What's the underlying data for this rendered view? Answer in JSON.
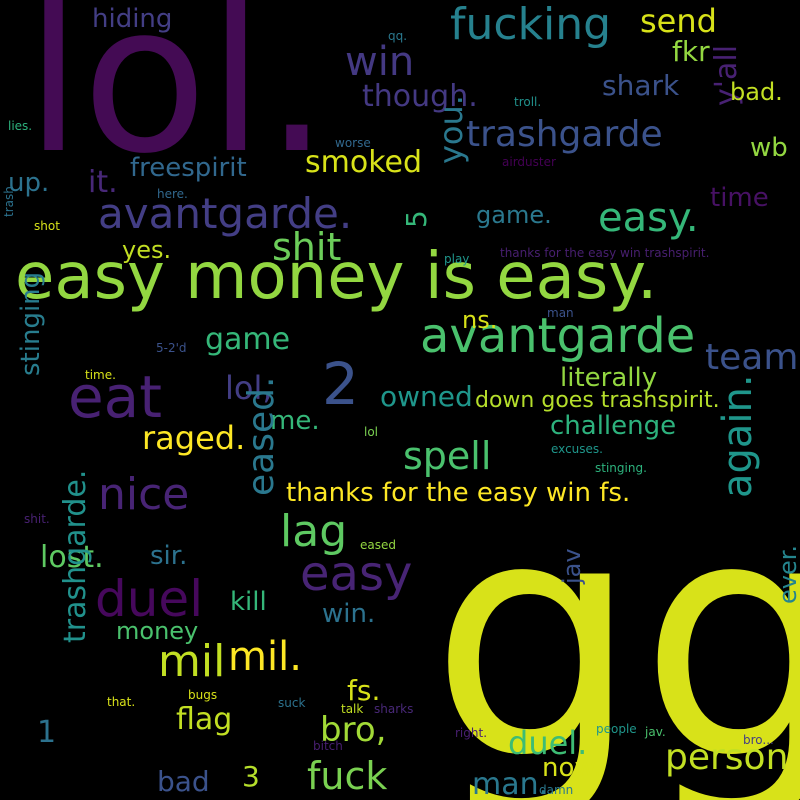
{
  "background_color": "#000000",
  "words": [
    {
      "id": "lol-big",
      "text": "lol.",
      "color": "#440b54"
    },
    {
      "id": "gg",
      "text": "gg",
      "color": "#d8e219"
    },
    {
      "id": "easy-money",
      "text": "easy money is easy.",
      "color": "#93d741"
    },
    {
      "id": "fucking",
      "text": "fucking",
      "color": "#26818e"
    },
    {
      "id": "send",
      "text": "send",
      "color": "#d8e219"
    },
    {
      "id": "hiding",
      "text": "hiding",
      "color": "#433e85"
    },
    {
      "id": "win",
      "text": "win",
      "color": "#443983"
    },
    {
      "id": "fkr",
      "text": "fkr",
      "color": "#93d741"
    },
    {
      "id": "shark",
      "text": "shark",
      "color": "#3b528b"
    },
    {
      "id": "though",
      "text": "though.",
      "color": "#443983"
    },
    {
      "id": "yall",
      "text": "y'all",
      "color": "#482173"
    },
    {
      "id": "bad-dot",
      "text": "bad.",
      "color": "#c2df23"
    },
    {
      "id": "trashgarde",
      "text": "trashgarde",
      "color": "#3b528b"
    },
    {
      "id": "wb",
      "text": "wb",
      "color": "#93d741"
    },
    {
      "id": "freespirit",
      "text": "freespirit",
      "color": "#31688e"
    },
    {
      "id": "smoked",
      "text": "smoked",
      "color": "#d8e219"
    },
    {
      "id": "you",
      "text": "you.",
      "color": "#2a788e"
    },
    {
      "id": "time-right",
      "text": "time",
      "color": "#471164"
    },
    {
      "id": "up",
      "text": "up.",
      "color": "#2c728e"
    },
    {
      "id": "it",
      "text": "it.",
      "color": "#482878"
    },
    {
      "id": "avantgarde-dot",
      "text": "avantgarde.",
      "color": "#433e85"
    },
    {
      "id": "five",
      "text": "5",
      "color": "#35b779"
    },
    {
      "id": "game-dot",
      "text": "game.",
      "color": "#2a788e"
    },
    {
      "id": "easy-dot",
      "text": "easy.",
      "color": "#35b779"
    },
    {
      "id": "shit",
      "text": "shit",
      "color": "#6ccd5a"
    },
    {
      "id": "yes",
      "text": "yes.",
      "color": "#c2df23"
    },
    {
      "id": "avantgarde",
      "text": "avantgarde",
      "color": "#4ac16d"
    },
    {
      "id": "ns",
      "text": "ns.",
      "color": "#d8e219"
    },
    {
      "id": "game",
      "text": "game",
      "color": "#35b779"
    },
    {
      "id": "eat",
      "text": "eat",
      "color": "#482173"
    },
    {
      "id": "two",
      "text": "2",
      "color": "#3b528b"
    },
    {
      "id": "team",
      "text": "team",
      "color": "#3b528b"
    },
    {
      "id": "literally",
      "text": "literally",
      "color": "#93d741"
    },
    {
      "id": "lol-comma",
      "text": "lol,",
      "color": "#433e85"
    },
    {
      "id": "owned",
      "text": "owned",
      "color": "#1f968b"
    },
    {
      "id": "down-goes",
      "text": "down goes trashspirit.",
      "color": "#b5de2b"
    },
    {
      "id": "stinging",
      "text": "stinging",
      "color": "#287d8e"
    },
    {
      "id": "raged",
      "text": "raged.",
      "color": "#fde725"
    },
    {
      "id": "me",
      "text": "me.",
      "color": "#35b779"
    },
    {
      "id": "challenge",
      "text": "challenge",
      "color": "#2db27d"
    },
    {
      "id": "spell",
      "text": "spell",
      "color": "#4ac16d"
    },
    {
      "id": "nice",
      "text": "nice",
      "color": "#482475"
    },
    {
      "id": "eased",
      "text": "eased.",
      "color": "#2a788e"
    },
    {
      "id": "thanks-fs",
      "text": "thanks for the easy win fs.",
      "color": "#fde725"
    },
    {
      "id": "again",
      "text": "again.",
      "color": "#1f968b"
    },
    {
      "id": "lag",
      "text": "lag",
      "color": "#5ec962"
    },
    {
      "id": "easy",
      "text": "easy",
      "color": "#482475"
    },
    {
      "id": "duel",
      "text": "duel",
      "color": "#46085c"
    },
    {
      "id": "lost",
      "text": "lost.",
      "color": "#5ec962"
    },
    {
      "id": "sir",
      "text": "sir.",
      "color": "#2c728e"
    },
    {
      "id": "jav",
      "text": "jav",
      "color": "#3b528b"
    },
    {
      "id": "kill",
      "text": "kill",
      "color": "#35b779"
    },
    {
      "id": "win-dot",
      "text": "win.",
      "color": "#2c728e"
    },
    {
      "id": "ever",
      "text": "ever.",
      "color": "#25858e"
    },
    {
      "id": "trashgarde-dot",
      "text": "trashgarde.",
      "color": "#21918c"
    },
    {
      "id": "money",
      "text": "money",
      "color": "#4ac16d"
    },
    {
      "id": "mil-1",
      "text": "mil",
      "color": "#c2df23"
    },
    {
      "id": "mil-2",
      "text": "mil.",
      "color": "#fde725"
    },
    {
      "id": "fs-dot",
      "text": "fs.",
      "color": "#d8e219"
    },
    {
      "id": "one",
      "text": "1",
      "color": "#2c728e"
    },
    {
      "id": "flag",
      "text": "flag",
      "color": "#c2df23"
    },
    {
      "id": "bro-comma",
      "text": "bro,",
      "color": "#a2da37"
    },
    {
      "id": "duel-dot",
      "text": "duel.",
      "color": "#3dbc74"
    },
    {
      "id": "person",
      "text": "person",
      "color": "#c2df23"
    },
    {
      "id": "now",
      "text": "now.",
      "color": "#d8e219"
    },
    {
      "id": "three",
      "text": "3",
      "color": "#b5de2b"
    },
    {
      "id": "bad",
      "text": "bad",
      "color": "#3b528b"
    },
    {
      "id": "fuck",
      "text": "fuck",
      "color": "#7ad151"
    },
    {
      "id": "man-dot",
      "text": "man.",
      "color": "#2a788e"
    },
    {
      "id": "qq",
      "text": "qq.",
      "color": "#2a788e"
    },
    {
      "id": "troll",
      "text": "troll.",
      "color": "#21918c"
    },
    {
      "id": "lies",
      "text": "lies.",
      "color": "#2db27d"
    },
    {
      "id": "worse",
      "text": "worse",
      "color": "#31688e"
    },
    {
      "id": "airduster",
      "text": "airduster",
      "color": "#440154"
    },
    {
      "id": "here",
      "text": "here.",
      "color": "#31688e"
    },
    {
      "id": "trash",
      "text": "trash",
      "color": "#2c728e"
    },
    {
      "id": "shot",
      "text": "shot",
      "color": "#d8e219"
    },
    {
      "id": "thanks-trashspirit",
      "text": "thanks for the easy win trashspirit.",
      "color": "#481f70"
    },
    {
      "id": "play",
      "text": "play",
      "color": "#1f968b"
    },
    {
      "id": "man",
      "text": "man",
      "color": "#3b528b"
    },
    {
      "id": "five-two-d",
      "text": "5-2'd",
      "color": "#3b528b"
    },
    {
      "id": "time-small",
      "text": "time.",
      "color": "#d8e219"
    },
    {
      "id": "lol-small",
      "text": "lol",
      "color": "#7ad151"
    },
    {
      "id": "excuses",
      "text": "excuses.",
      "color": "#1f968b"
    },
    {
      "id": "stinging-dot",
      "text": "stinging.",
      "color": "#2db27d"
    },
    {
      "id": "shit-dot",
      "text": "shit.",
      "color": "#482173"
    },
    {
      "id": "eased-small",
      "text": "eased",
      "color": "#93d741"
    },
    {
      "id": "bugs",
      "text": "bugs",
      "color": "#d8e219"
    },
    {
      "id": "that",
      "text": "that.",
      "color": "#d8e219"
    },
    {
      "id": "talk",
      "text": "talk",
      "color": "#c2df23"
    },
    {
      "id": "sharks",
      "text": "sharks",
      "color": "#482878"
    },
    {
      "id": "suck",
      "text": "suck",
      "color": "#2c728e"
    },
    {
      "id": "people",
      "text": "people",
      "color": "#1f968b"
    },
    {
      "id": "right",
      "text": "right.",
      "color": "#481f70"
    },
    {
      "id": "jav-dot",
      "text": "jav.",
      "color": "#4ac16d"
    },
    {
      "id": "bro-ellipsis",
      "text": "bro...",
      "color": "#433e85"
    },
    {
      "id": "bitch",
      "text": "bitch",
      "color": "#481f70"
    },
    {
      "id": "damn",
      "text": "damn",
      "color": "#2a788e"
    }
  ]
}
